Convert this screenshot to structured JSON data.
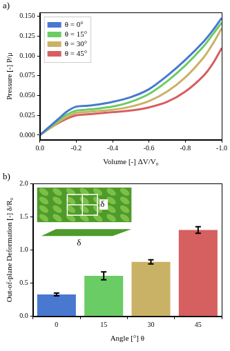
{
  "chart_data": [
    {
      "type": "line",
      "panel_label": "a)",
      "x_label": "Volume [-] ΔV/V₀",
      "y_label": "Pressure [-] P/μ",
      "x": [
        0,
        -0.05,
        -0.1,
        -0.15,
        -0.2,
        -0.25,
        -0.3,
        -0.4,
        -0.5,
        -0.6,
        -0.7,
        -0.8,
        -0.9,
        -0.95,
        -1.0
      ],
      "series": [
        {
          "name": "θ = 0°",
          "color": "#4878d0",
          "values": [
            0,
            0.01,
            0.02,
            0.03,
            0.036,
            0.037,
            0.038,
            0.042,
            0.048,
            0.058,
            0.075,
            0.095,
            0.118,
            0.132,
            0.148
          ]
        },
        {
          "name": "θ = 15°",
          "color": "#6acc64",
          "values": [
            0,
            0.009,
            0.018,
            0.026,
            0.031,
            0.032,
            0.033,
            0.036,
            0.042,
            0.052,
            0.068,
            0.088,
            0.112,
            0.127,
            0.142
          ]
        },
        {
          "name": "θ = 30°",
          "color": "#c9b266",
          "values": [
            0,
            0.008,
            0.016,
            0.023,
            0.028,
            0.029,
            0.03,
            0.032,
            0.036,
            0.043,
            0.055,
            0.073,
            0.098,
            0.115,
            0.135
          ]
        },
        {
          "name": "θ = 45°",
          "color": "#d65f5f",
          "values": [
            0,
            0.008,
            0.015,
            0.021,
            0.025,
            0.026,
            0.027,
            0.029,
            0.031,
            0.035,
            0.042,
            0.055,
            0.075,
            0.09,
            0.11
          ]
        }
      ],
      "xlim": [
        0,
        -1
      ],
      "xticks": [
        {
          "value": 0,
          "label": "0.0"
        },
        {
          "value": -0.2,
          "label": "-0.2"
        },
        {
          "value": -0.4,
          "label": "-0.4"
        },
        {
          "value": -0.6,
          "label": "-0.6"
        },
        {
          "value": -0.8,
          "label": "-0.8"
        },
        {
          "value": -1.0,
          "label": "-1.0"
        }
      ],
      "ylim": [
        -0.006,
        0.155
      ],
      "yticks": [
        {
          "value": 0,
          "label": "0.000"
        },
        {
          "value": 0.025,
          "label": "0.025"
        },
        {
          "value": 0.05,
          "label": "0.050"
        },
        {
          "value": 0.075,
          "label": "0.075"
        },
        {
          "value": 0.1,
          "label": "0.100"
        },
        {
          "value": 0.125,
          "label": "0.125"
        },
        {
          "value": 0.15,
          "label": "0.150"
        }
      ],
      "grid": false,
      "legend": "upper left"
    },
    {
      "type": "bar",
      "panel_label": "b)",
      "x_label": "Angle [°] θ",
      "y_label": "Out-of-plane Deformation [-] δ/R₀",
      "categories": [
        "0",
        "15",
        "30",
        "45"
      ],
      "values": [
        0.33,
        0.61,
        0.82,
        1.3
      ],
      "errors": [
        0.02,
        0.06,
        0.03,
        0.05
      ],
      "colors": [
        "#4878d0",
        "#6acc64",
        "#c9b266",
        "#d65f5f"
      ],
      "ylim": [
        0,
        2.0
      ],
      "yticks": [
        {
          "value": 0,
          "label": "0.0"
        },
        {
          "value": 0.5,
          "label": "0.5"
        },
        {
          "value": 1.0,
          "label": "1.0"
        },
        {
          "value": 1.5,
          "label": "1.5"
        },
        {
          "value": 2.0,
          "label": "2.0"
        }
      ],
      "annotations": [
        "δ",
        "δ"
      ],
      "grid": false
    }
  ]
}
